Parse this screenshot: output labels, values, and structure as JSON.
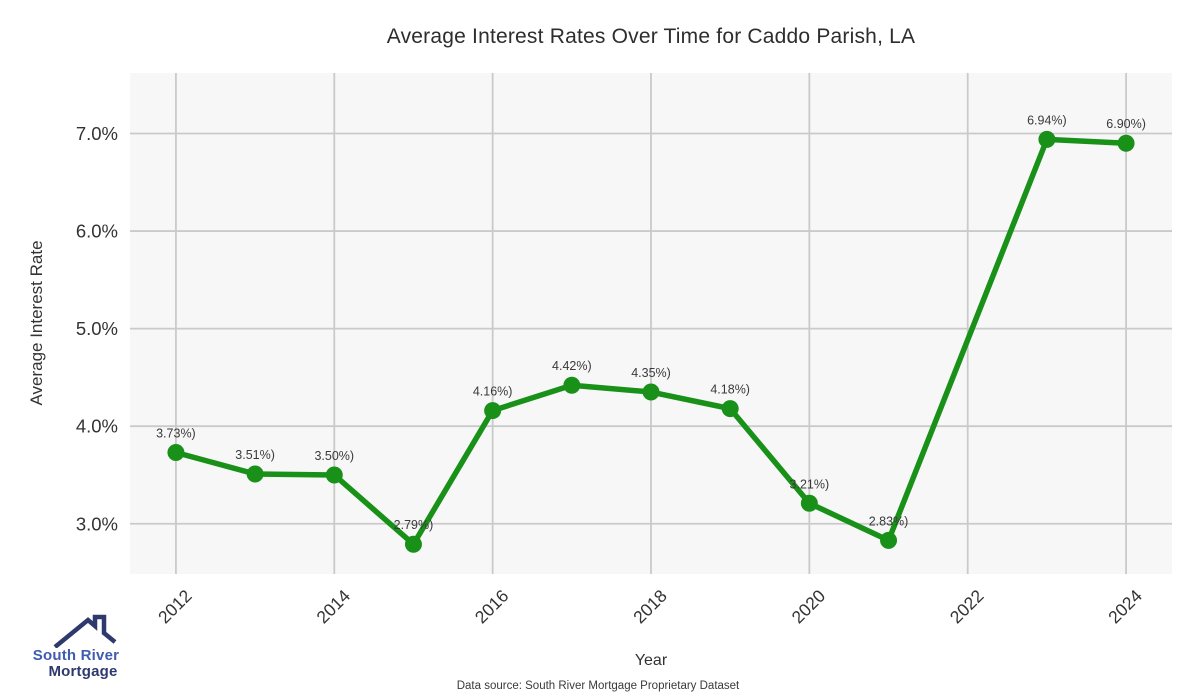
{
  "title": "Average Interest Rates Over Time for Caddo Parish, LA",
  "chart_data": {
    "type": "line",
    "x": [
      2012,
      2013,
      2014,
      2015,
      2016,
      2017,
      2018,
      2019,
      2020,
      2021,
      2023,
      2024
    ],
    "values": [
      3.73,
      3.51,
      3.5,
      2.79,
      4.16,
      4.42,
      4.35,
      4.18,
      3.21,
      2.83,
      6.94,
      6.9
    ],
    "point_labels": [
      "3.73%)",
      "3.51%)",
      "3.50%)",
      "2.79%)",
      "4.16%)",
      "4.42%)",
      "4.35%)",
      "4.18%)",
      "3.21%)",
      "2.83%)",
      "6.94%)",
      "6.90%)"
    ],
    "title": "Average Interest Rates Over Time for Caddo Parish, LA",
    "xlabel": "Year",
    "ylabel": "Average Interest Rate",
    "x_ticks": [
      2012,
      2014,
      2016,
      2018,
      2020,
      2022,
      2024
    ],
    "y_ticks": [
      3.0,
      4.0,
      5.0,
      6.0,
      7.0
    ],
    "y_tick_labels": [
      "3.0%",
      "4.0%",
      "5.0%",
      "6.0%",
      "7.0%"
    ],
    "xlim": [
      2011.42,
      2024.58
    ],
    "ylim": [
      2.485,
      7.62
    ],
    "grid": true,
    "legend_position": "none",
    "line_color": "#199119",
    "plot_bg_color": "#f7f7f7",
    "grid_color": "#cacaca",
    "label_color": "#3a3a3a",
    "tick_color": "#333333"
  },
  "footer": {
    "source_note": "Data source: South River Mortgage Proprietary Dataset"
  },
  "logo": {
    "line1": "South River",
    "line2": "Mortgage",
    "color_primary": "#3f5cb0",
    "color_secondary": "#2e3a6e"
  }
}
